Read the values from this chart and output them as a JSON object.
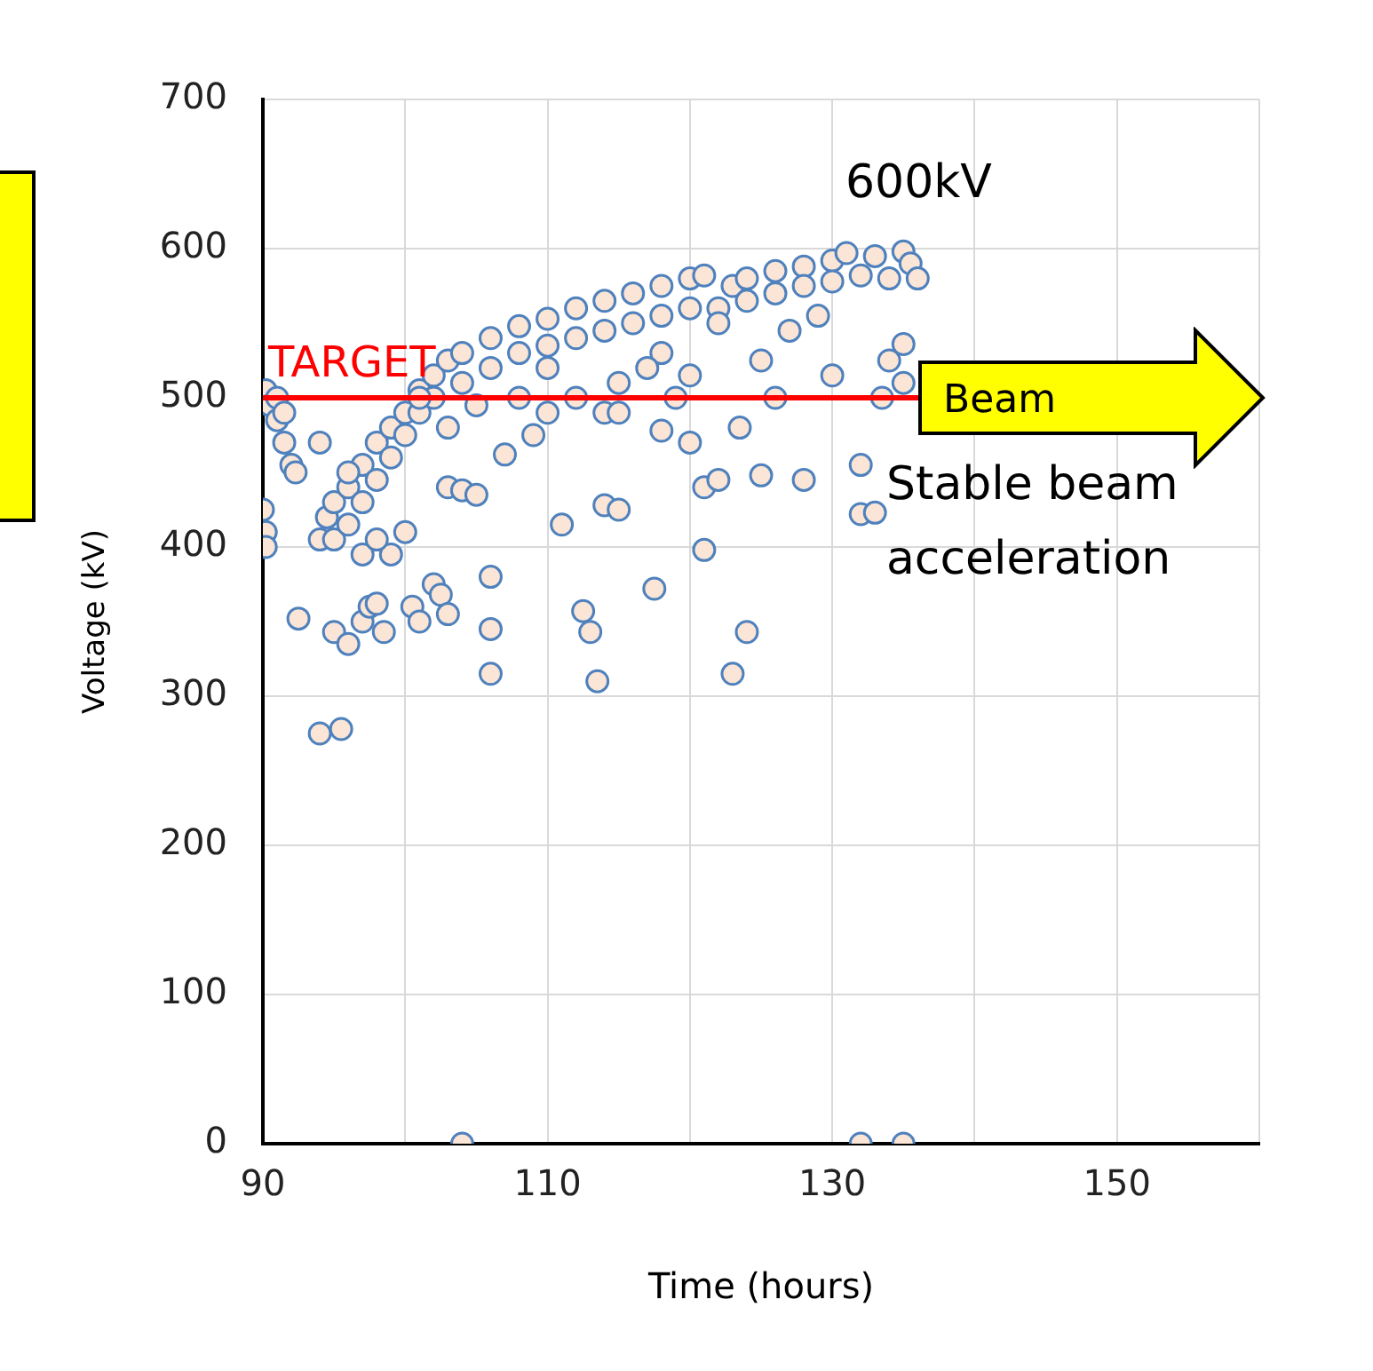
{
  "chart_data": {
    "type": "scatter",
    "xlabel": "Time (hours)",
    "ylabel": "Voltage (kV)",
    "xlim": [
      90,
      160
    ],
    "ylim": [
      0,
      700
    ],
    "xticks": [
      90,
      {
        "value": 100,
        "label": null
      },
      110,
      {
        "value": 120,
        "label": null
      },
      130,
      {
        "value": 140,
        "label": null
      },
      150,
      {
        "value": 160,
        "label": null
      }
    ],
    "yticks": [
      0,
      100,
      200,
      300,
      400,
      500,
      600,
      700
    ],
    "grid": true,
    "marker": "circle",
    "series": [
      {
        "color": "#4f81bd",
        "x": [
          90.2,
          90.5,
          91,
          91.5,
          92,
          92.3,
          90,
          90.2,
          90.2,
          92.5,
          91,
          91.5,
          94,
          94.5,
          95,
          96,
          97,
          98,
          99,
          100,
          101,
          102,
          103,
          104,
          106,
          108,
          110,
          112,
          114,
          116,
          118,
          120,
          121,
          122,
          123,
          124,
          126,
          128,
          130,
          131,
          133,
          135,
          135.5,
          136,
          95,
          96,
          97,
          98,
          99,
          100,
          101,
          102,
          104,
          106,
          108,
          110,
          112,
          114,
          116,
          118,
          120,
          122,
          124,
          126,
          128,
          130,
          132,
          134,
          94,
          95,
          94,
          95.5,
          96,
          97,
          97.5,
          98,
          98.5,
          99,
          100,
          100.5,
          101,
          102,
          102.5,
          103,
          103,
          104,
          105,
          106,
          106,
          106,
          107,
          109,
          111,
          112,
          112.5,
          113,
          113.5,
          114,
          114,
          115,
          117.5,
          118,
          120,
          121,
          121,
          122,
          123,
          123.5,
          124,
          125,
          126,
          128,
          130,
          132,
          132,
          133,
          133.5,
          135,
          135,
          134,
          104,
          132,
          135,
          108,
          110,
          115,
          118,
          120,
          125,
          127,
          129,
          119,
          115,
          117,
          110,
          105,
          103,
          96,
          97,
          98,
          101
        ],
        "values": [
          505,
          495,
          485,
          470,
          455,
          450,
          425,
          410,
          400,
          352,
          500,
          490,
          405,
          420,
          430,
          440,
          455,
          470,
          480,
          490,
          505,
          515,
          525,
          530,
          540,
          548,
          553,
          560,
          565,
          570,
          575,
          580,
          582,
          560,
          575,
          580,
          585,
          588,
          592,
          597,
          595,
          598,
          590,
          580,
          405,
          415,
          430,
          445,
          460,
          475,
          490,
          500,
          510,
          520,
          530,
          535,
          540,
          545,
          550,
          555,
          560,
          550,
          565,
          570,
          575,
          578,
          582,
          580,
          470,
          343,
          275,
          278,
          335,
          350,
          360,
          362,
          343,
          395,
          410,
          360,
          350,
          375,
          368,
          355,
          440,
          438,
          435,
          380,
          345,
          315,
          462,
          475,
          415,
          500,
          357,
          343,
          310,
          428,
          490,
          425,
          372,
          478,
          470,
          398,
          440,
          445,
          315,
          480,
          343,
          448,
          500,
          445,
          515,
          455,
          422,
          423,
          500,
          536,
          510,
          525,
          0,
          0,
          0,
          500,
          520,
          510,
          530,
          515,
          525,
          545,
          555,
          500,
          490,
          520,
          490,
          495,
          480,
          450,
          395,
          405,
          500
        ]
      }
    ],
    "ref_lines": [
      {
        "axis": "y",
        "value": 500,
        "label": "TARGET",
        "color": "#ff0000"
      }
    ],
    "annotations": [
      "600kV",
      {
        "text": "Beam",
        "x": 136,
        "y": 500
      },
      "Stable beam acceleration"
    ]
  }
}
